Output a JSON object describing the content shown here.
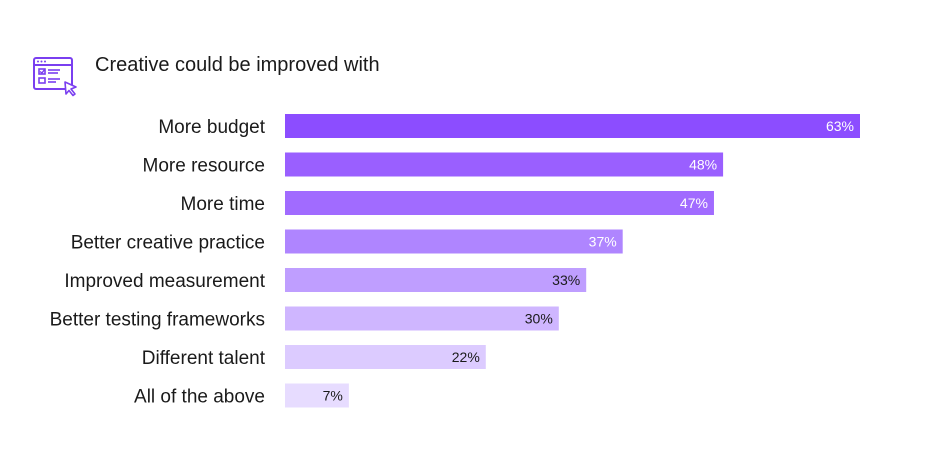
{
  "chart_data": {
    "type": "bar",
    "orientation": "horizontal",
    "title": "Creative could be improved with",
    "categories": [
      "More budget",
      "More resource",
      "More time",
      "Better creative practice",
      "Improved measurement",
      "Better testing frameworks",
      "Different talent",
      "All of the above"
    ],
    "values": [
      63,
      48,
      47,
      37,
      33,
      30,
      22,
      7
    ],
    "value_labels": [
      "63%",
      "48%",
      "47%",
      "37%",
      "33%",
      "30%",
      "22%",
      "7%"
    ],
    "unit": "%",
    "xlim": [
      0,
      63
    ],
    "grid": false,
    "legend": "none",
    "colors": [
      "#8c4dff",
      "#9a5fff",
      "#a16bff",
      "#af85ff",
      "#bf9eff",
      "#cfb6ff",
      "#dccbff",
      "#e7dcff"
    ],
    "label_colors": [
      "#ffffff",
      "#ffffff",
      "#ffffff",
      "#ffffff",
      "#1a1a1a",
      "#1a1a1a",
      "#1a1a1a",
      "#1a1a1a"
    ]
  },
  "header": {
    "icon": "browser-checklist-cursor-icon",
    "accent": "#7a3ff0"
  }
}
